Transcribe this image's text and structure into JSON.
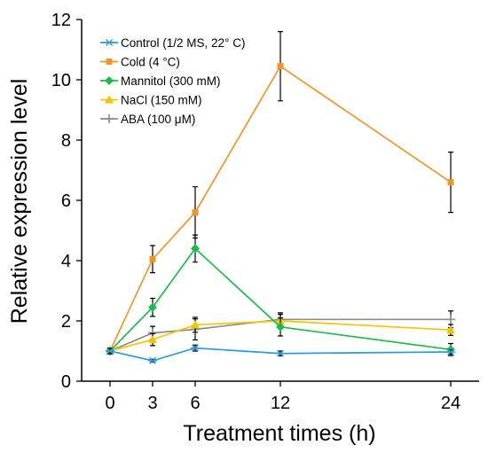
{
  "chart_data": {
    "type": "line",
    "xlabel": "Treatment times (h)",
    "ylabel": "Relative expression level",
    "x": [
      0,
      3,
      6,
      12,
      24
    ],
    "xlim": [
      -2,
      26
    ],
    "ylim": [
      0,
      12
    ],
    "xticks": [
      0,
      3,
      6,
      12,
      24
    ],
    "yticks": [
      0,
      2,
      4,
      6,
      8,
      10,
      12
    ],
    "grid": false,
    "legend_position": "top-left",
    "series": [
      {
        "name": "Control (1/2 MS, 22° C)",
        "color": "#2E9AD6",
        "marker": "asterisk",
        "values": [
          1.0,
          0.68,
          1.1,
          0.92,
          0.97
        ],
        "errors": [
          0.08,
          0.05,
          0.1,
          0.08,
          0.07
        ]
      },
      {
        "name": "Cold (4 °C)",
        "color": "#F0952B",
        "marker": "square",
        "values": [
          1.0,
          4.05,
          5.6,
          10.45,
          6.6
        ],
        "errors": [
          0.1,
          0.45,
          0.85,
          1.15,
          1.0
        ]
      },
      {
        "name": "Mannitol (300 mM)",
        "color": "#1DBB4A",
        "marker": "diamond",
        "values": [
          1.0,
          2.45,
          4.4,
          1.8,
          1.05
        ],
        "errors": [
          0.1,
          0.3,
          0.45,
          0.3,
          0.2
        ]
      },
      {
        "name": "NaCl (150 mM)",
        "color": "#F5C400",
        "marker": "triangle",
        "values": [
          1.0,
          1.38,
          1.87,
          2.0,
          1.7
        ],
        "errors": [
          0.08,
          0.2,
          0.25,
          0.22,
          0.18
        ]
      },
      {
        "name": "ABA (100 μM)",
        "color": "#8C8C8C",
        "marker": "plus",
        "values": [
          1.0,
          1.6,
          1.72,
          2.05,
          2.05
        ],
        "errors": [
          0.1,
          0.22,
          0.35,
          0.22,
          0.28
        ]
      }
    ]
  }
}
